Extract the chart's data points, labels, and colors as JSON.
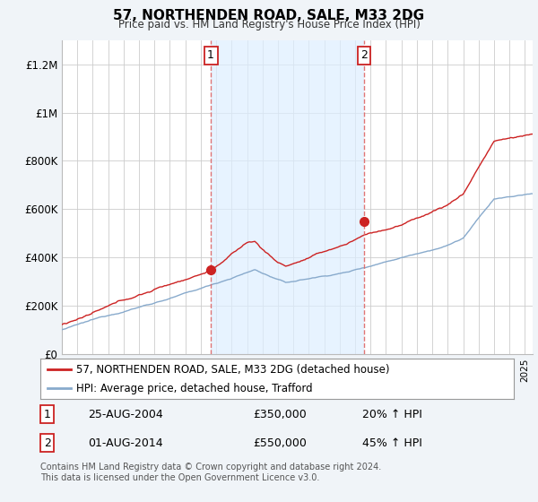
{
  "title": "57, NORTHENDEN ROAD, SALE, M33 2DG",
  "subtitle": "Price paid vs. HM Land Registry's House Price Index (HPI)",
  "ylabel_ticks": [
    "£0",
    "£200K",
    "£400K",
    "£600K",
    "£800K",
    "£1M",
    "£1.2M"
  ],
  "ytick_values": [
    0,
    200000,
    400000,
    600000,
    800000,
    1000000,
    1200000
  ],
  "ylim": [
    0,
    1300000
  ],
  "xlim_start": 1995.0,
  "xlim_end": 2025.5,
  "sale1_date": 2004.65,
  "sale1_price": 350000,
  "sale1_label": "1",
  "sale2_date": 2014.58,
  "sale2_price": 550000,
  "sale2_label": "2",
  "red_color": "#cc2222",
  "blue_color": "#88aacc",
  "shade_color": "#ddeeff",
  "dashed_color": "#dd6666",
  "legend_label_red": "57, NORTHENDEN ROAD, SALE, M33 2DG (detached house)",
  "legend_label_blue": "HPI: Average price, detached house, Trafford",
  "table_row1": [
    "1",
    "25-AUG-2004",
    "£350,000",
    "20% ↑ HPI"
  ],
  "table_row2": [
    "2",
    "01-AUG-2014",
    "£550,000",
    "45% ↑ HPI"
  ],
  "footnote": "Contains HM Land Registry data © Crown copyright and database right 2024.\nThis data is licensed under the Open Government Licence v3.0.",
  "background_color": "#f0f4f8",
  "plot_bg_color": "#ffffff",
  "grid_color": "#cccccc"
}
